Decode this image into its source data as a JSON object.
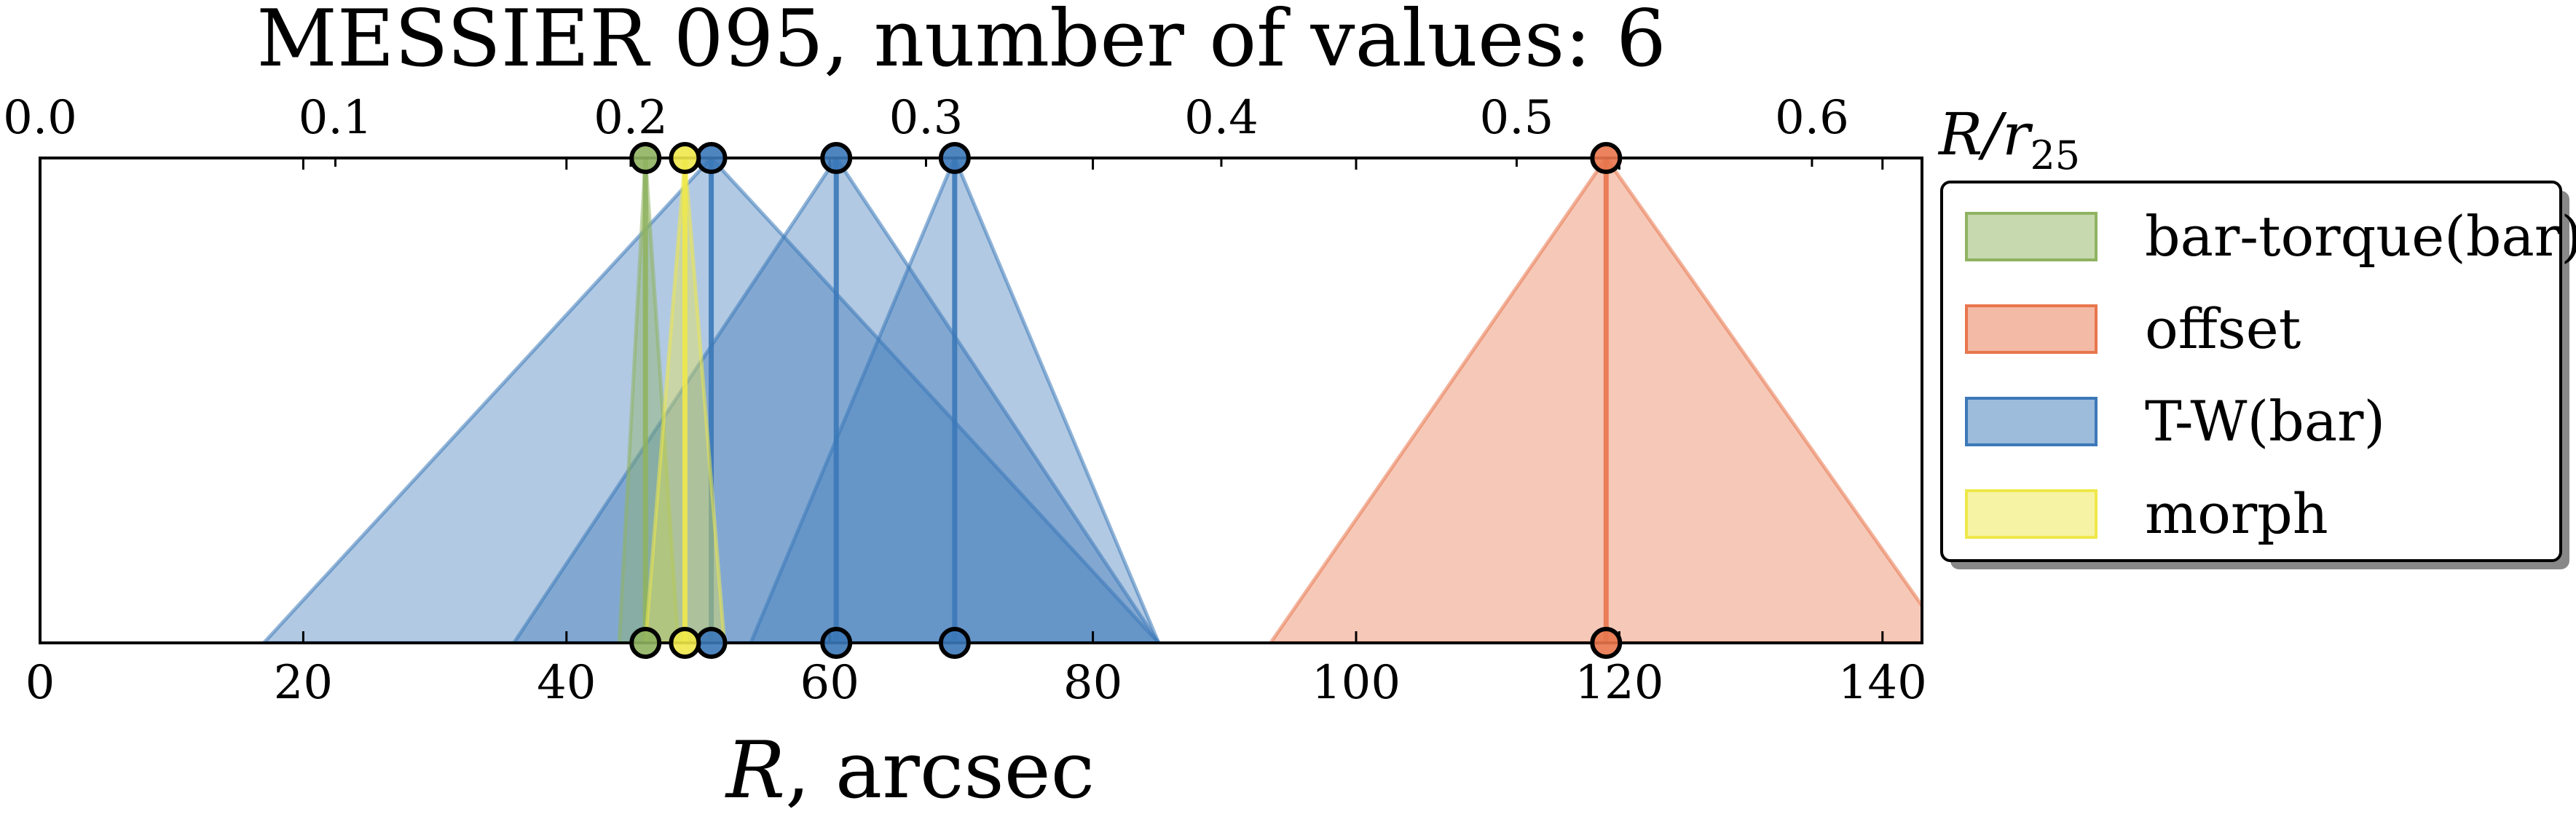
{
  "chart_data": {
    "type": "area",
    "title": "MESSIER 095, number of values: 6",
    "xlabel": {
      "italic": "R",
      "rest": ", arcsec"
    },
    "top_axis_label": {
      "base": "R/r",
      "sub": "25"
    },
    "xlim": [
      0,
      143
    ],
    "ylim": [
      0,
      1
    ],
    "x_ticks": [
      0,
      20,
      40,
      60,
      80,
      100,
      120,
      140
    ],
    "top_ticks": [
      0.0,
      0.1,
      0.2,
      0.3,
      0.4,
      0.5,
      0.6
    ],
    "top_ticks_text": [
      "0.0",
      "0.1",
      "0.2",
      "0.3",
      "0.4",
      "0.5",
      "0.6"
    ],
    "r25_arcsec": 224.4,
    "grid": false,
    "legend_position": "right",
    "series": [
      {
        "name": "bar-torque(bar)",
        "color": "#8fb360",
        "values": [
          {
            "r": 46.0,
            "lo": 44.0,
            "hi": 48.5
          }
        ]
      },
      {
        "name": "offset",
        "color": "#e8764d",
        "values": [
          {
            "r": 119.0,
            "lo": 93.5,
            "hi": 145.0
          }
        ]
      },
      {
        "name": "T-W(bar)",
        "color": "#3b78b8",
        "values": [
          {
            "r": 51.0,
            "lo": 17.0,
            "hi": 85.0
          },
          {
            "r": 60.5,
            "lo": 36.0,
            "hi": 85.0
          },
          {
            "r": 69.5,
            "lo": 54.0,
            "hi": 85.0
          }
        ]
      },
      {
        "name": "morph",
        "color": "#eee84a",
        "values": [
          {
            "r": 49.0,
            "lo": 46.0,
            "hi": 52.0
          }
        ]
      }
    ]
  }
}
